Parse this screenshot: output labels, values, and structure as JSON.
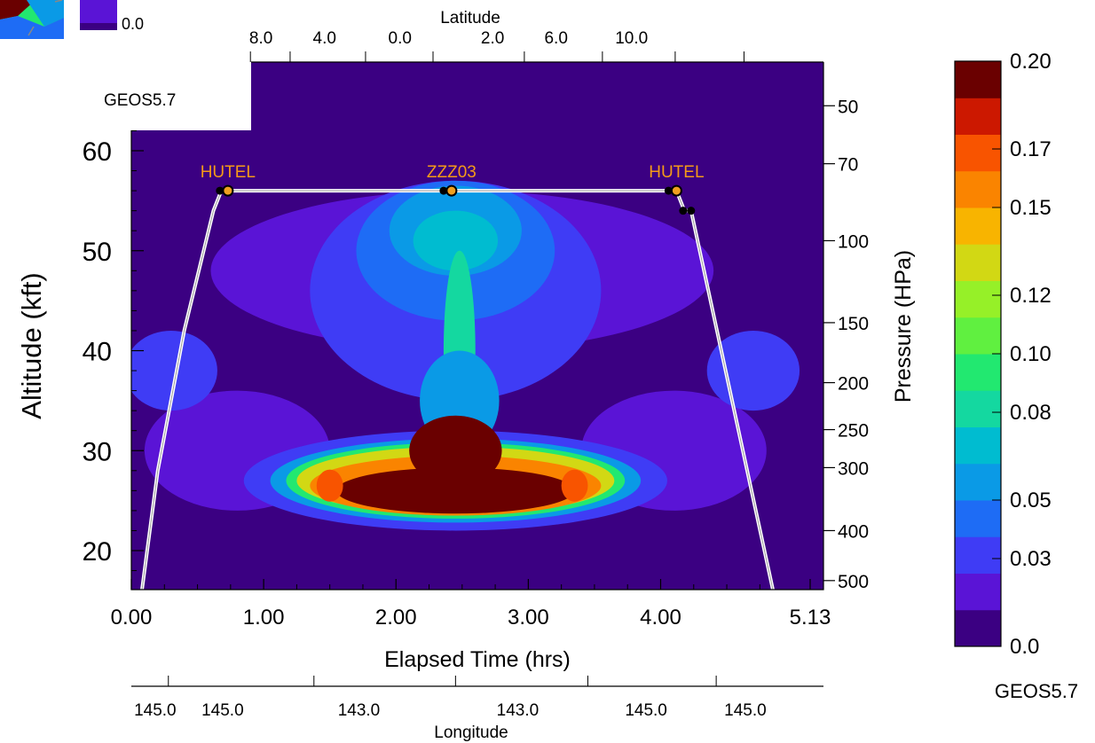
{
  "chart_data": {
    "type": "heatmap",
    "model_label_plot": "GEOS5.7",
    "model_label_colorbar": "GEOS5.7",
    "xlabel": "Elapsed Time (hrs)",
    "ylabel": "Altitude (kft)",
    "y2label": "Pressure (HPa)",
    "top_label": "Latitude",
    "bottom_label": "Longitude",
    "xlim": [
      0,
      5.13
    ],
    "ylim": [
      16,
      65.5
    ],
    "x_ticks": [
      "0.00",
      "1.00",
      "2.00",
      "3.00",
      "4.00",
      "5.13"
    ],
    "x_tick_values": [
      0,
      1,
      2,
      3,
      4,
      5.13
    ],
    "y_ticks": [
      "20",
      "30",
      "40",
      "50",
      "60"
    ],
    "y_tick_values": [
      20,
      30,
      40,
      50,
      60
    ],
    "pressure_ticks": [
      "50",
      "70",
      "100",
      "150",
      "200",
      "250",
      "300",
      "400",
      "500"
    ],
    "pressure_tick_alts": [
      64.5,
      58.7,
      51.0,
      42.8,
      36.8,
      32.1,
      28.3,
      22.0,
      17.0
    ],
    "latitude_ticks": [
      "8.0",
      "4.0",
      "0.0",
      "2.0",
      "6.0",
      "10.0"
    ],
    "latitude_tick_times": [
      0.98,
      1.46,
      2.03,
      2.73,
      3.21,
      3.78
    ],
    "longitude_ticks": [
      "145.0",
      "145.0",
      "143.0",
      "143.0",
      "145.0",
      "145.0"
    ],
    "longitude_tick_times": [
      0.18,
      0.69,
      1.72,
      2.92,
      3.89,
      4.64
    ],
    "colorbar": {
      "min_label": "0.0",
      "tick_labels": [
        "0.20",
        "0.17",
        "0.15",
        "0.12",
        "0.10",
        "0.08",
        "0.05",
        "0.03",
        "0.0"
      ],
      "tick_values": [
        0.2,
        0.17,
        0.15,
        0.12,
        0.1,
        0.08,
        0.05,
        0.03,
        0.0
      ],
      "levels": [
        0.0,
        0.0125,
        0.025,
        0.0375,
        0.05,
        0.0625,
        0.075,
        0.0875,
        0.1,
        0.1125,
        0.125,
        0.1375,
        0.15,
        0.1625,
        0.175,
        0.1875,
        0.2
      ],
      "colors": [
        "#3b0082",
        "#5a14d6",
        "#3f3cf5",
        "#1e6cf5",
        "#0a9ae6",
        "#00bcd0",
        "#14d8a0",
        "#22e870",
        "#60f040",
        "#96f028",
        "#d2d814",
        "#f8b400",
        "#fa8400",
        "#f85400",
        "#cc1800",
        "#9a0000",
        "#6a0000"
      ]
    },
    "waypoints": [
      {
        "label": "HUTEL",
        "time": 0.73,
        "alt": 56
      },
      {
        "label": "ZZZ03",
        "time": 2.42,
        "alt": 56
      },
      {
        "label": "HUTEL",
        "time": 4.12,
        "alt": 56
      }
    ],
    "flight_track": [
      [
        0.08,
        16
      ],
      [
        0.2,
        28
      ],
      [
        0.4,
        42
      ],
      [
        0.62,
        54
      ],
      [
        0.68,
        56
      ],
      [
        0.73,
        56
      ],
      [
        2.42,
        56
      ],
      [
        4.12,
        56
      ],
      [
        4.18,
        54
      ],
      [
        4.23,
        54
      ],
      [
        4.85,
        16
      ]
    ],
    "blobs": [
      {
        "level": 1,
        "t": 2.5,
        "a": 48,
        "rx": 1.9,
        "ry": 8
      },
      {
        "level": 1,
        "t": 0.8,
        "a": 30,
        "rx": 0.7,
        "ry": 6
      },
      {
        "level": 1,
        "t": 4.1,
        "a": 30,
        "rx": 0.7,
        "ry": 6
      },
      {
        "level": 2,
        "t": 2.45,
        "a": 46,
        "rx": 1.1,
        "ry": 11
      },
      {
        "level": 2,
        "t": 0.3,
        "a": 38,
        "rx": 0.35,
        "ry": 4
      },
      {
        "level": 2,
        "t": 4.7,
        "a": 38,
        "rx": 0.35,
        "ry": 4
      },
      {
        "level": 3,
        "t": 2.45,
        "a": 50,
        "rx": 0.75,
        "ry": 7
      },
      {
        "level": 4,
        "t": 2.45,
        "a": 52,
        "rx": 0.5,
        "ry": 4.5
      },
      {
        "level": 5,
        "t": 2.45,
        "a": 51,
        "rx": 0.32,
        "ry": 3
      },
      {
        "level": 6,
        "t": 2.48,
        "a": 40,
        "rx": 0.12,
        "ry": 10
      },
      {
        "level": 4,
        "t": 2.48,
        "a": 35,
        "rx": 0.3,
        "ry": 5
      },
      {
        "level": 2,
        "t": 2.45,
        "a": 27,
        "rx": 1.6,
        "ry": 5
      },
      {
        "level": 4,
        "t": 2.45,
        "a": 27,
        "rx": 1.4,
        "ry": 4.2
      },
      {
        "level": 7,
        "t": 2.45,
        "a": 27,
        "rx": 1.28,
        "ry": 3.8
      },
      {
        "level": 10,
        "t": 2.45,
        "a": 27,
        "rx": 1.2,
        "ry": 3.4
      },
      {
        "level": 12,
        "t": 2.45,
        "a": 26.5,
        "rx": 1.1,
        "ry": 3.0
      },
      {
        "level": 16,
        "t": 2.45,
        "a": 26,
        "rx": 0.9,
        "ry": 2.3
      },
      {
        "level": 16,
        "t": 2.45,
        "a": 30,
        "rx": 0.35,
        "ry": 3.5
      },
      {
        "level": 13,
        "t": 1.5,
        "a": 26.5,
        "rx": 0.1,
        "ry": 1.6
      },
      {
        "level": 13,
        "t": 3.35,
        "a": 26.5,
        "rx": 0.1,
        "ry": 1.6
      }
    ]
  }
}
